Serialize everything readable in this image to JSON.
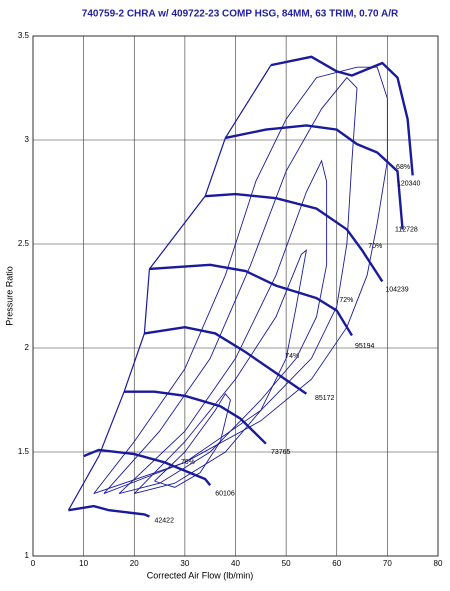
{
  "chart_data": {
    "type": "line",
    "title": "740759-2 CHRA w/ 409722-23 COMP HSG, 84MM, 63 TRIM, 0.70 A/R",
    "x_label": "Corrected Air Flow (lb/min)",
    "y_label": "Pressure Ratio",
    "xlim": [
      0,
      80
    ],
    "ylim": [
      1,
      3.5
    ],
    "xticks": [
      0,
      10,
      20,
      30,
      40,
      50,
      60,
      70,
      80
    ],
    "yticks": [
      1,
      1.5,
      2,
      2.5,
      3,
      3.5
    ],
    "grid": true,
    "color": "#1a1a9c",
    "series": [
      {
        "name": "42422",
        "x": [
          7,
          12,
          15,
          22,
          23
        ],
        "y": [
          1.22,
          1.24,
          1.22,
          1.2,
          1.19
        ]
      },
      {
        "name": "60106",
        "x": [
          10,
          13,
          20,
          26,
          30,
          34,
          35
        ],
        "y": [
          1.48,
          1.51,
          1.49,
          1.45,
          1.41,
          1.37,
          1.34
        ]
      },
      {
        "name": "73765",
        "x": [
          18,
          24,
          30,
          37,
          41,
          46
        ],
        "y": [
          1.79,
          1.79,
          1.77,
          1.72,
          1.66,
          1.54
        ]
      },
      {
        "name": "85172",
        "x": [
          22,
          30,
          36,
          42,
          48,
          54
        ],
        "y": [
          2.07,
          2.1,
          2.07,
          1.98,
          1.88,
          1.78
        ]
      },
      {
        "name": "95194",
        "x": [
          23,
          35,
          42,
          48,
          56,
          60,
          63
        ],
        "y": [
          2.38,
          2.4,
          2.37,
          2.3,
          2.24,
          2.18,
          2.06
        ]
      },
      {
        "name": "104239",
        "x": [
          34,
          40,
          48,
          56,
          62,
          65,
          69
        ],
        "y": [
          2.73,
          2.74,
          2.72,
          2.67,
          2.57,
          2.47,
          2.32
        ]
      },
      {
        "name": "112728",
        "x": [
          38,
          46,
          54,
          60,
          64,
          68,
          72,
          73
        ],
        "y": [
          3.01,
          3.05,
          3.07,
          3.05,
          2.98,
          2.94,
          2.85,
          2.57
        ]
      },
      {
        "name": "120340",
        "x": [
          47,
          55,
          60,
          63,
          69,
          72,
          74,
          75
        ],
        "y": [
          3.36,
          3.4,
          3.33,
          3.31,
          3.37,
          3.3,
          3.1,
          2.83
        ]
      }
    ],
    "label_positions": {
      "x": [
        24,
        36,
        47,
        55.7,
        63.6,
        69.6,
        71.5,
        71.9
      ],
      "y": [
        1.17,
        1.3,
        1.5,
        1.76,
        2.01,
        2.28,
        2.57,
        2.79
      ]
    },
    "surge_line": {
      "x": [
        7,
        13,
        18,
        22,
        23,
        34,
        38,
        47
      ],
      "y": [
        1.22,
        1.48,
        1.79,
        2.07,
        2.38,
        2.73,
        3.01,
        3.36
      ]
    },
    "efficiency_contours": [
      {
        "label": "76%",
        "label_x": 30.6,
        "label_y": 1.45,
        "x": [
          24,
          30,
          36,
          38,
          39,
          37,
          33,
          28,
          24
        ],
        "y": [
          1.36,
          1.5,
          1.7,
          1.78,
          1.75,
          1.55,
          1.4,
          1.33,
          1.36
        ]
      },
      {
        "label": "74%",
        "label_x": 51.2,
        "label_y": 1.96,
        "x": [
          20,
          30,
          40,
          48,
          53,
          54,
          52,
          50,
          45,
          38,
          28,
          20
        ],
        "y": [
          1.3,
          1.55,
          1.85,
          2.15,
          2.45,
          2.47,
          2.2,
          1.95,
          1.7,
          1.5,
          1.35,
          1.3
        ]
      },
      {
        "label": "72%",
        "label_x": 61.9,
        "label_y": 2.23,
        "x": [
          17,
          30,
          40,
          48,
          54,
          57,
          58,
          58,
          56,
          52,
          45,
          35,
          25,
          17
        ],
        "y": [
          1.3,
          1.6,
          1.95,
          2.35,
          2.75,
          2.9,
          2.8,
          2.4,
          2.15,
          1.95,
          1.75,
          1.5,
          1.35,
          1.3
        ]
      },
      {
        "label": "70%",
        "label_x": 67.6,
        "label_y": 2.49,
        "x": [
          14,
          25,
          35,
          43,
          50,
          57,
          62,
          64,
          63,
          62,
          60,
          55,
          45,
          30,
          14
        ],
        "y": [
          1.3,
          1.6,
          1.95,
          2.4,
          2.85,
          3.15,
          3.3,
          3.25,
          2.9,
          2.5,
          2.2,
          1.95,
          1.7,
          1.45,
          1.3
        ]
      },
      {
        "label": "68%",
        "label_x": 73.1,
        "label_y": 2.87,
        "x": [
          12,
          20,
          30,
          38,
          44,
          50,
          56,
          64,
          68,
          70,
          70,
          68,
          66,
          62,
          55,
          45,
          30,
          12
        ],
        "y": [
          1.3,
          1.55,
          1.9,
          2.35,
          2.8,
          3.1,
          3.3,
          3.35,
          3.35,
          3.2,
          2.9,
          2.6,
          2.35,
          2.1,
          1.85,
          1.65,
          1.45,
          1.3
        ]
      }
    ]
  }
}
